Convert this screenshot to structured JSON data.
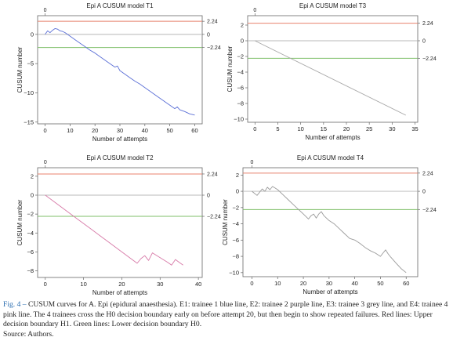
{
  "caption": {
    "label": "Fig. 4 –",
    "text": "CUSUM curves for A. Epi (epidural anaesthesia). E1: trainee 1 blue line, E2: trainee 2 purple line, E3: trainee 3 grey line, and E4: trainee 4 pink line. The 4 trainees cross the H0 decision boundary early on before attempt 20, but then begin to show repeated failures. Red lines: Upper decision boundary H1. Green lines: Lower decision boundary H0.",
    "source": "Source: Authors."
  },
  "colors": {
    "upper": "#e8826e",
    "lower": "#7fbf6a",
    "zero": "#b8b8b8",
    "T1": "#5b6fd6",
    "T2": "#d77aa8",
    "T3": "#a8a8a8",
    "T4": "#9a9a9a"
  },
  "chart_data": [
    {
      "id": "T1",
      "type": "line",
      "title": "Epi A CUSUM model T1",
      "xlabel": "Number of attempts",
      "ylabel": "CUSUM number",
      "xlim": [
        -3,
        63
      ],
      "ylim": [
        -15.3,
        3.2
      ],
      "xticks": [
        0,
        10,
        20,
        30,
        40,
        50,
        60
      ],
      "yticks": [
        0,
        -5,
        -10,
        -15
      ],
      "top_tick": "0",
      "right_labels": [
        "2.24",
        "0",
        "-2.24"
      ],
      "h1": 2.24,
      "h0": -2.24,
      "grid": false,
      "series": [
        {
          "x": [
            0,
            1,
            2,
            3,
            4,
            5,
            6,
            7,
            8,
            9,
            10,
            12,
            14,
            16,
            18,
            20,
            22,
            24,
            26,
            28,
            29,
            30,
            32,
            34,
            36,
            38,
            40,
            42,
            44,
            46,
            48,
            50,
            52,
            53,
            54,
            56,
            58,
            60
          ],
          "y": [
            0,
            0.6,
            0.3,
            0.7,
            1.0,
            0.9,
            0.6,
            0.5,
            0.3,
            0.0,
            -0.3,
            -0.9,
            -1.5,
            -2.1,
            -2.7,
            -3.2,
            -3.8,
            -4.4,
            -5.0,
            -5.6,
            -5.4,
            -6.2,
            -6.8,
            -7.4,
            -8.0,
            -8.5,
            -9.1,
            -9.7,
            -10.3,
            -10.9,
            -11.5,
            -12.1,
            -12.7,
            -12.4,
            -12.9,
            -13.2,
            -13.6,
            -13.8
          ]
        }
      ]
    },
    {
      "id": "T3",
      "type": "line",
      "title": "Epi A CUSUM model T3",
      "xlabel": "Number of attempts",
      "ylabel": "CUSUM number",
      "xlim": [
        -1.6,
        35.6
      ],
      "ylim": [
        -10.4,
        3.2
      ],
      "xticks": [
        0,
        5,
        10,
        15,
        20,
        25,
        30,
        35
      ],
      "yticks": [
        2,
        0,
        -2,
        -4,
        -6,
        -8,
        -10
      ],
      "top_tick": "0",
      "right_labels": [
        "2.24",
        "0",
        "-2.24"
      ],
      "h1": 2.24,
      "h0": -2.24,
      "grid": false,
      "series": [
        {
          "x": [
            0,
            33
          ],
          "y": [
            0,
            -9.5
          ]
        }
      ]
    },
    {
      "id": "T2",
      "type": "line",
      "title": "Epi A CUSUM model T2",
      "xlabel": "Number of attempts",
      "ylabel": "CUSUM number",
      "xlim": [
        -2,
        41
      ],
      "ylim": [
        -8.7,
        2.9
      ],
      "xticks": [
        0,
        10,
        20,
        30,
        40
      ],
      "yticks": [
        2,
        0,
        -2,
        -4,
        -6,
        -8
      ],
      "top_tick": "0",
      "right_labels": [
        "2.24",
        "0",
        "-2.24"
      ],
      "h1": 2.24,
      "h0": -2.24,
      "grid": false,
      "series": [
        {
          "x": [
            0,
            4,
            8,
            12,
            16,
            20,
            24,
            25,
            26,
            27,
            28,
            30,
            32,
            33,
            34,
            35,
            36
          ],
          "y": [
            0,
            -1.2,
            -2.4,
            -3.6,
            -4.8,
            -6.0,
            -7.2,
            -6.7,
            -6.4,
            -6.9,
            -6.1,
            -6.6,
            -7.1,
            -7.4,
            -6.8,
            -7.1,
            -7.4
          ]
        }
      ]
    },
    {
      "id": "T4",
      "type": "line",
      "title": "Epi A CUSUM model T4",
      "xlabel": "Number of attempts",
      "ylabel": "CUSUM number",
      "xlim": [
        -3.5,
        64.5
      ],
      "ylim": [
        -10.5,
        2.9
      ],
      "xticks": [
        0,
        10,
        20,
        30,
        40,
        50,
        60
      ],
      "yticks": [
        2,
        0,
        -2,
        -4,
        -6,
        -8,
        -10
      ],
      "top_tick": "0",
      "right_labels": [
        "2.24",
        "0",
        "-2.24"
      ],
      "h1": 2.24,
      "h0": -2.24,
      "grid": false,
      "series": [
        {
          "x": [
            0,
            2,
            4,
            5,
            6,
            7,
            8,
            9,
            10,
            12,
            14,
            16,
            18,
            20,
            21,
            22,
            23,
            24,
            25,
            26,
            27,
            28,
            30,
            32,
            34,
            36,
            38,
            40,
            42,
            44,
            46,
            48,
            50,
            51,
            52,
            53,
            54,
            56,
            58,
            60
          ],
          "y": [
            0,
            -0.5,
            0.3,
            0.0,
            0.5,
            0.2,
            0.6,
            0.4,
            0.2,
            -0.4,
            -1.0,
            -1.6,
            -2.2,
            -2.8,
            -3.1,
            -3.4,
            -3.0,
            -2.8,
            -3.3,
            -2.8,
            -2.5,
            -3.0,
            -3.6,
            -4.0,
            -4.6,
            -5.2,
            -5.8,
            -6.0,
            -6.4,
            -6.9,
            -7.3,
            -7.6,
            -8.0,
            -7.6,
            -7.2,
            -7.7,
            -8.1,
            -8.8,
            -9.5,
            -10.0
          ]
        }
      ]
    }
  ]
}
